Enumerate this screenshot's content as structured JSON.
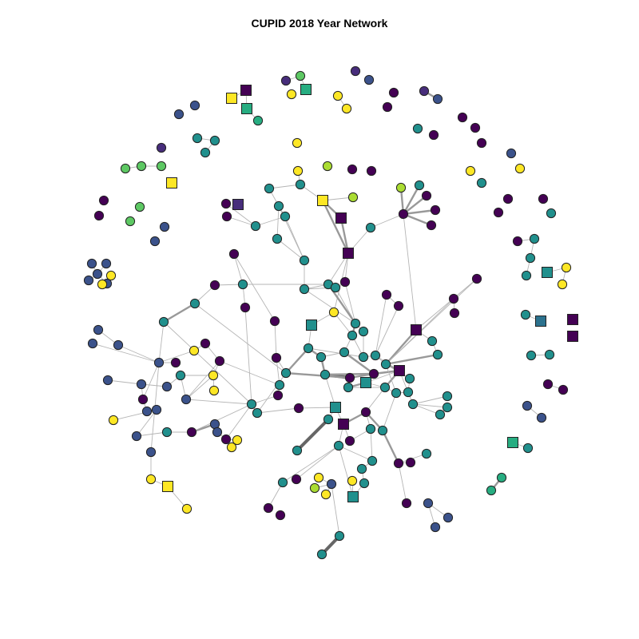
{
  "title": "CUPID 2018 Year Network",
  "colors": {
    "background": "#ffffff",
    "node_stroke": "#222222",
    "edge": "#b5b5b5",
    "edge_strong": "#666666",
    "palette": {
      "v": "#440154",
      "i": "#472d7b",
      "b": "#3b528b",
      "s": "#2c728e",
      "t": "#21908d",
      "g": "#27ad81",
      "m": "#5dc863",
      "l": "#aadc32",
      "y": "#fde725"
    }
  },
  "legend": "none"
}
